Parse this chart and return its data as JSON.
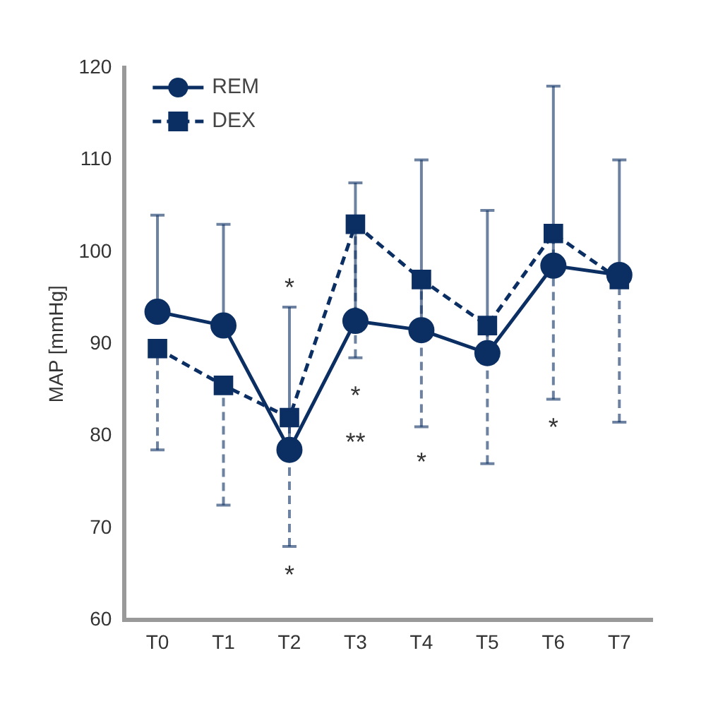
{
  "chart_data": {
    "type": "line",
    "ylabel": "MAP [mmHg]",
    "categories": [
      "T0",
      "T1",
      "T2",
      "T3",
      "T4",
      "T5",
      "T6",
      "T7"
    ],
    "series": [
      {
        "name": "REM",
        "color": "#0b2f63",
        "marker": "circle",
        "line_style": "solid",
        "values": [
          93.5,
          92,
          78.5,
          92.5,
          91.5,
          89,
          98.5,
          97.5
        ],
        "errors": [
          [
            93.5,
            104
          ],
          [
            92,
            103
          ],
          [
            78.5,
            94
          ],
          [
            92.5,
            107.5
          ],
          [
            91.5,
            110
          ],
          [
            89,
            104.5
          ],
          [
            98.5,
            118
          ],
          [
            97.5,
            110
          ]
        ]
      },
      {
        "name": "DEX",
        "color": "#0b2f63",
        "marker": "square",
        "line_style": "dashed",
        "values": [
          89.5,
          85.5,
          82,
          103,
          97,
          92,
          102,
          97
        ],
        "errors": [
          [
            78.5,
            89.5
          ],
          [
            72.5,
            85.5
          ],
          [
            68,
            82
          ],
          [
            88.5,
            103
          ],
          [
            81,
            97
          ],
          [
            77,
            92
          ],
          [
            84,
            102
          ],
          [
            81.5,
            97
          ]
        ]
      }
    ],
    "ylim": [
      60,
      120
    ],
    "yticks": [
      60,
      70,
      80,
      90,
      100,
      110,
      120
    ],
    "grid": false,
    "legend": "top left",
    "annotations": [
      "*",
      "*",
      "*",
      "**",
      "*",
      "*"
    ]
  }
}
